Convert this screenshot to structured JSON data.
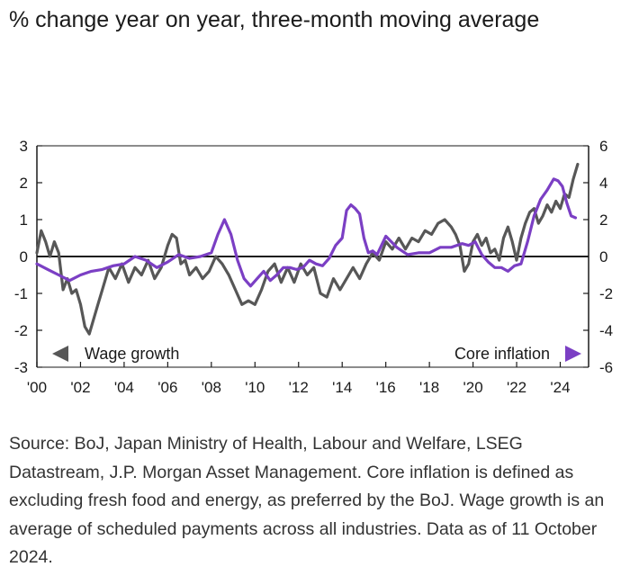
{
  "header": {
    "title": "% change year on year, three-month moving average"
  },
  "colors": {
    "wage": "#575757",
    "core": "#7b3fc4",
    "axis": "#1a1a1a"
  },
  "legend": {
    "wage_label": "Wage growth",
    "core_label": "Core inflation"
  },
  "chart_data": {
    "type": "line",
    "title": "% change year on year, three-month moving average",
    "xlabel": "",
    "ylabel_left": "",
    "ylabel_right": "",
    "xlim": [
      2000,
      2025.3
    ],
    "ylim_left": [
      -3,
      3
    ],
    "ylim_right": [
      -6,
      6
    ],
    "x_ticks": [
      "'00",
      "'02",
      "'04",
      "'06",
      "'08",
      "'10",
      "'12",
      "'14",
      "'16",
      "'18",
      "'20",
      "'22",
      "'24"
    ],
    "x_tick_years": [
      2000,
      2002,
      2004,
      2006,
      2008,
      2010,
      2012,
      2014,
      2016,
      2018,
      2020,
      2022,
      2024
    ],
    "left_ticks": [
      "3",
      "2",
      "1",
      "0",
      "-1",
      "-2",
      "-3"
    ],
    "left_tick_values": [
      3,
      2,
      1,
      0,
      -1,
      -2,
      -3
    ],
    "right_ticks": [
      "6",
      "4",
      "2",
      "0",
      "-2",
      "-4",
      "-6"
    ],
    "right_tick_values": [
      6,
      4,
      2,
      0,
      -2,
      -4,
      -6
    ],
    "series": [
      {
        "name": "Wage growth",
        "axis": "left",
        "x": [
          2000.0,
          2000.2,
          2000.4,
          2000.6,
          2000.8,
          2001.0,
          2001.2,
          2001.4,
          2001.6,
          2001.8,
          2002.0,
          2002.2,
          2002.4,
          2002.6,
          2002.8,
          2003.0,
          2003.3,
          2003.6,
          2003.9,
          2004.2,
          2004.5,
          2004.8,
          2005.1,
          2005.4,
          2005.7,
          2006.0,
          2006.2,
          2006.4,
          2006.6,
          2006.8,
          2007.0,
          2007.3,
          2007.6,
          2007.9,
          2008.2,
          2008.5,
          2008.8,
          2009.1,
          2009.4,
          2009.7,
          2010.0,
          2010.3,
          2010.6,
          2010.9,
          2011.2,
          2011.5,
          2011.8,
          2012.1,
          2012.4,
          2012.7,
          2013.0,
          2013.3,
          2013.6,
          2013.9,
          2014.2,
          2014.5,
          2014.8,
          2015.1,
          2015.4,
          2015.7,
          2016.0,
          2016.3,
          2016.6,
          2016.9,
          2017.2,
          2017.5,
          2017.8,
          2018.1,
          2018.4,
          2018.7,
          2019.0,
          2019.2,
          2019.4,
          2019.6,
          2019.8,
          2020.0,
          2020.2,
          2020.4,
          2020.6,
          2020.8,
          2021.0,
          2021.2,
          2021.4,
          2021.6,
          2021.8,
          2022.0,
          2022.2,
          2022.4,
          2022.6,
          2022.8,
          2023.0,
          2023.2,
          2023.4,
          2023.6,
          2023.8,
          2024.0,
          2024.2,
          2024.4,
          2024.6,
          2024.8
        ],
        "values": [
          0.1,
          0.7,
          0.4,
          0.0,
          0.4,
          0.1,
          -0.9,
          -0.6,
          -1.0,
          -0.9,
          -1.3,
          -1.9,
          -2.1,
          -1.7,
          -1.3,
          -0.9,
          -0.3,
          -0.6,
          -0.2,
          -0.7,
          -0.3,
          -0.5,
          -0.1,
          -0.6,
          -0.3,
          0.3,
          0.6,
          0.5,
          -0.2,
          -0.1,
          -0.5,
          -0.3,
          -0.6,
          -0.4,
          0.0,
          -0.2,
          -0.5,
          -0.9,
          -1.3,
          -1.2,
          -1.3,
          -0.9,
          -0.4,
          -0.2,
          -0.7,
          -0.3,
          -0.7,
          -0.2,
          -0.5,
          -0.3,
          -1.0,
          -1.1,
          -0.6,
          -0.9,
          -0.6,
          -0.3,
          -0.6,
          -0.2,
          0.1,
          -0.1,
          0.4,
          0.2,
          0.5,
          0.2,
          0.5,
          0.4,
          0.7,
          0.6,
          0.9,
          1.0,
          0.8,
          0.6,
          0.3,
          -0.4,
          -0.2,
          0.4,
          0.6,
          0.3,
          0.5,
          0.1,
          0.2,
          -0.1,
          0.5,
          0.8,
          0.4,
          -0.1,
          0.5,
          0.9,
          1.2,
          1.3,
          0.9,
          1.1,
          1.4,
          1.2,
          1.5,
          1.3,
          1.7,
          1.6,
          2.1,
          2.5
        ]
      },
      {
        "name": "Core inflation",
        "axis": "right",
        "x": [
          2000.0,
          2000.5,
          2001.0,
          2001.5,
          2002.0,
          2002.5,
          2003.0,
          2003.5,
          2004.0,
          2004.5,
          2005.0,
          2005.5,
          2006.0,
          2006.5,
          2007.0,
          2007.5,
          2008.0,
          2008.3,
          2008.6,
          2008.9,
          2009.2,
          2009.5,
          2009.8,
          2010.1,
          2010.4,
          2010.7,
          2011.0,
          2011.3,
          2011.6,
          2011.9,
          2012.2,
          2012.5,
          2012.8,
          2013.1,
          2013.4,
          2013.7,
          2014.0,
          2014.2,
          2014.4,
          2014.6,
          2014.8,
          2015.0,
          2015.2,
          2015.4,
          2015.6,
          2016.0,
          2016.5,
          2017.0,
          2017.5,
          2018.0,
          2018.5,
          2019.0,
          2019.5,
          2019.8,
          2020.1,
          2020.4,
          2020.7,
          2021.0,
          2021.3,
          2021.6,
          2021.9,
          2022.2,
          2022.5,
          2022.8,
          2023.1,
          2023.4,
          2023.7,
          2023.9,
          2024.1,
          2024.3,
          2024.5,
          2024.7
        ],
        "values": [
          -0.4,
          -0.7,
          -1.0,
          -1.3,
          -1.0,
          -0.8,
          -0.7,
          -0.5,
          -0.4,
          0.0,
          -0.2,
          -0.6,
          -0.3,
          0.1,
          -0.1,
          0.0,
          0.2,
          1.2,
          2.0,
          1.2,
          -0.2,
          -1.2,
          -1.6,
          -1.2,
          -0.8,
          -1.3,
          -1.0,
          -0.6,
          -0.6,
          -0.7,
          -0.6,
          -0.2,
          -0.4,
          -0.5,
          -0.1,
          0.6,
          1.0,
          2.5,
          2.8,
          2.6,
          2.3,
          1.0,
          0.2,
          0.3,
          0.1,
          1.1,
          0.5,
          0.1,
          0.2,
          0.2,
          0.5,
          0.5,
          0.7,
          0.6,
          0.8,
          0.1,
          -0.3,
          -0.6,
          -0.6,
          -0.8,
          -0.5,
          -0.4,
          0.8,
          2.2,
          3.1,
          3.6,
          4.2,
          4.1,
          3.8,
          2.9,
          2.2,
          2.1
        ]
      }
    ],
    "legend": [
      "Wage growth",
      "Core inflation"
    ]
  },
  "source": {
    "text": "Source: BoJ, Japan Ministry of Health, Labour and Welfare, LSEG Datastream, J.P. Morgan Asset Management. Core inflation is defined as excluding fresh food and energy, as preferred by the BoJ. Wage growth is an average of scheduled payments across all industries. Data as of 11 October 2024."
  }
}
